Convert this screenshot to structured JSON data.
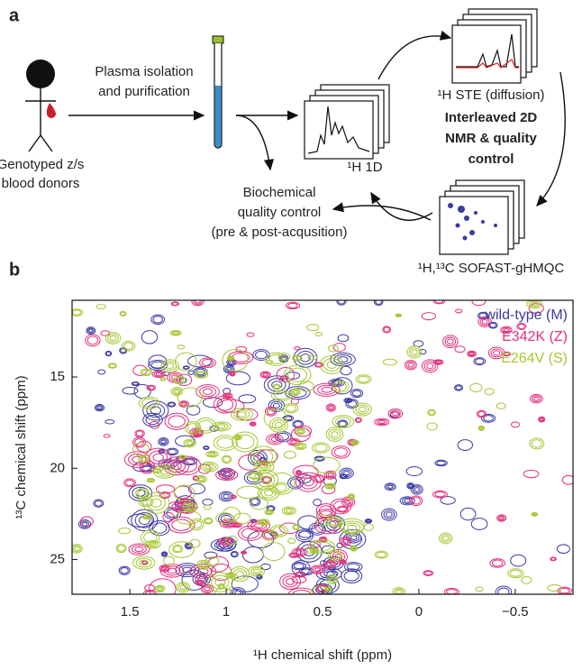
{
  "panel_a": {
    "label": "a",
    "donor_label": [
      "Genotyped z/s",
      "blood donors"
    ],
    "plasma_label": [
      "Plasma isolation",
      "and purification"
    ],
    "qc_label": [
      "Biochemical",
      "quality control",
      "(pre & post-acqusition)"
    ],
    "nmr_1d_label": "¹H 1D",
    "ste_label": "¹H STE (diffusion)",
    "interleaved_label": [
      "Interleaved 2D",
      "NMR & quality",
      "control"
    ],
    "hmqc_label": "¹H,¹³C SOFAST-gHMQC"
  },
  "chart_data": {
    "type": "contour",
    "label": "b",
    "xlabel": "¹H chemical shift (ppm)",
    "ylabel": "¹³C chemical shift (ppm)",
    "xlim": [
      1.8,
      -0.8
    ],
    "ylim": [
      26.9,
      10.8
    ],
    "xticks": [
      1.5,
      1,
      0.5,
      0,
      {
        "value": -0.5,
        "label": "−0.5"
      }
    ],
    "yticks": [
      15,
      20,
      25
    ],
    "series": [
      {
        "name": "wild-type (M)",
        "color": "#3b3ba3"
      },
      {
        "name": "E342K (Z)",
        "color": "#e2307c"
      },
      {
        "name": "E264V (S)",
        "color": "#a4c832"
      }
    ]
  }
}
